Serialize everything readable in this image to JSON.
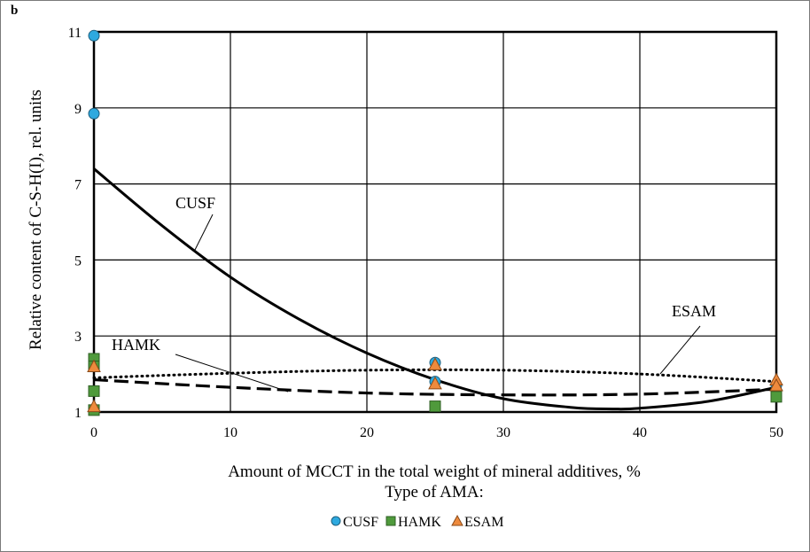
{
  "panel_label": "b",
  "chart_data": {
    "type": "scatter",
    "title": "",
    "xlabel": "Amount of MCCT in the total weight of mineral additives, %",
    "xlabel2": "Type of AMA:",
    "ylabel": "Relative content of C-S-H(I), rel. units",
    "xlim": [
      0,
      50
    ],
    "ylim": [
      1,
      11
    ],
    "xticks": [
      0,
      10,
      20,
      30,
      40,
      50
    ],
    "yticks": [
      1,
      3,
      5,
      7,
      9,
      11
    ],
    "grid": true,
    "legend_position": "bottom-center",
    "colors": {
      "CUSF": "#2ea9df",
      "HAMK": "#4f9a3c",
      "ESAM": "#ee8a3d"
    },
    "series": [
      {
        "name": "CUSF",
        "marker": "circle",
        "x": [
          0,
          0,
          25,
          25,
          50
        ],
        "y": [
          10.9,
          8.85,
          2.3,
          1.8,
          1.7
        ]
      },
      {
        "name": "HAMK",
        "marker": "square",
        "x": [
          0,
          0,
          0,
          0,
          25,
          50
        ],
        "y": [
          2.4,
          2.2,
          1.55,
          1.05,
          1.15,
          1.4
        ]
      },
      {
        "name": "ESAM",
        "marker": "triangle",
        "x": [
          0,
          0,
          25,
          25,
          50,
          50
        ],
        "y": [
          2.2,
          1.15,
          2.25,
          1.75,
          1.85,
          1.7
        ]
      }
    ],
    "trendlines": [
      {
        "name": "CUSF",
        "style": "solid",
        "x": [
          0,
          5,
          10,
          15,
          20,
          25,
          30,
          35,
          38,
          40,
          45,
          50
        ],
        "y": [
          7.4,
          5.9,
          4.55,
          3.45,
          2.55,
          1.85,
          1.35,
          1.12,
          1.08,
          1.1,
          1.28,
          1.65
        ]
      },
      {
        "name": "HAMK",
        "style": "dashed",
        "x": [
          0,
          10,
          20,
          30,
          40,
          50
        ],
        "y": [
          1.85,
          1.65,
          1.5,
          1.45,
          1.47,
          1.6
        ]
      },
      {
        "name": "ESAM",
        "style": "dotted",
        "x": [
          0,
          10,
          20,
          30,
          40,
          50
        ],
        "y": [
          1.9,
          2.02,
          2.1,
          2.1,
          2.0,
          1.8
        ]
      }
    ],
    "annotations": [
      {
        "text": "CUSF",
        "target": "CUSF"
      },
      {
        "text": "HAMK",
        "target": "HAMK"
      },
      {
        "text": "ESAM",
        "target": "ESAM"
      }
    ]
  }
}
